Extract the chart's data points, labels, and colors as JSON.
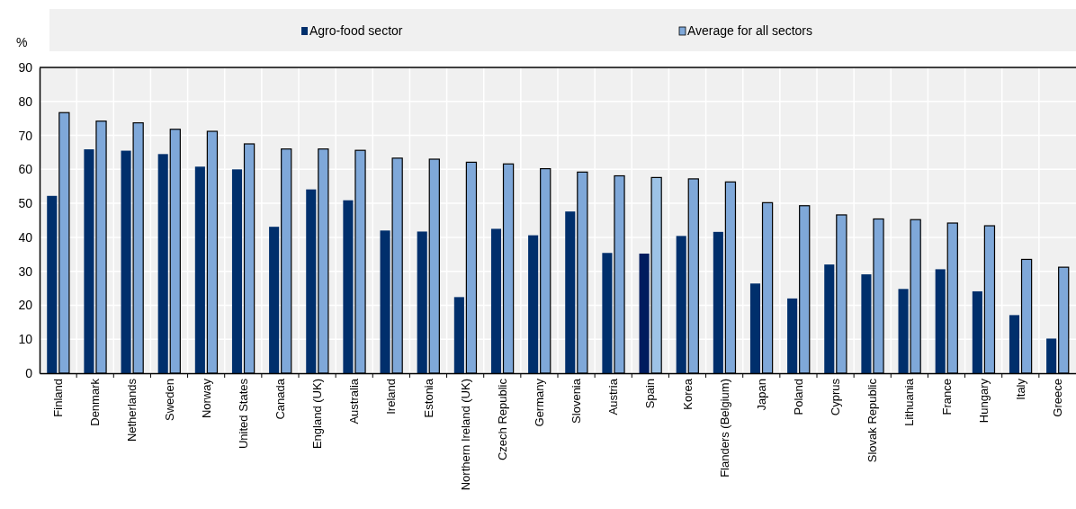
{
  "chart_data": {
    "type": "bar",
    "ylabel": "%",
    "categories": [
      "Finland",
      "Denmark",
      "Netherlands",
      "Sweden",
      "Norway",
      "United States",
      "Canada",
      "England (UK)",
      "Australia",
      "Ireland",
      "Estonia",
      "Northern Ireland (UK)",
      "Czech Republic",
      "Germany",
      "Slovenia",
      "Austria",
      "Spain",
      "Korea",
      "Flanders (Belgium)",
      "Japan",
      "Poland",
      "Cyprus",
      "Slovak Republic",
      "Lithuania",
      "France",
      "Hungary",
      "Italy",
      "Greece"
    ],
    "series": [
      {
        "name": "Agro-food sector",
        "color": "#002f6c",
        "colors": [
          "#002f6c",
          "#002f6c",
          "#002f6c",
          "#002f6c",
          "#002f6c",
          "#002f6c",
          "#002f6c",
          "#002f6c",
          "#002f6c",
          "#002f6c",
          "#002f6c",
          "#002f6c",
          "#002f6c",
          "#002f6c",
          "#002f6c",
          "#002f6c",
          "#001b5e",
          "#002f6c",
          "#002f6c",
          "#002f6c",
          "#002f6c",
          "#002f6c",
          "#002f6c",
          "#002f6c",
          "#002f6c",
          "#002f6c",
          "#002f6c",
          "#002f6c"
        ],
        "values": [
          52.2,
          65.9,
          65.5,
          64.5,
          60.8,
          60.0,
          43.1,
          54.1,
          50.9,
          42.0,
          41.7,
          22.4,
          42.5,
          40.6,
          47.6,
          35.4,
          35.2,
          40.4,
          41.6,
          26.4,
          22.0,
          32.0,
          29.1,
          24.8,
          30.6,
          24.1,
          17.1,
          10.2
        ]
      },
      {
        "name": "Average for all sectors",
        "color": "#7fa8d9",
        "colors": [
          "#7fa8d9",
          "#7fa8d9",
          "#7fa8d9",
          "#7fa8d9",
          "#7fa8d9",
          "#7fa8d9",
          "#7fa8d9",
          "#7fa8d9",
          "#7fa8d9",
          "#7fa8d9",
          "#7fa8d9",
          "#7fa8d9",
          "#7fa8d9",
          "#7fa8d9",
          "#7fa8d9",
          "#7fa8d9",
          "#9dc3e6",
          "#7fa8d9",
          "#7fa8d9",
          "#7fa8d9",
          "#7fa8d9",
          "#7fa8d9",
          "#7fa8d9",
          "#7fa8d9",
          "#7fa8d9",
          "#7fa8d9",
          "#7fa8d9",
          "#7fa8d9"
        ],
        "values": [
          76.7,
          74.2,
          73.7,
          71.8,
          71.2,
          67.5,
          66.0,
          66.0,
          65.6,
          63.3,
          63.0,
          62.1,
          61.6,
          60.2,
          59.2,
          58.1,
          57.6,
          57.2,
          56.3,
          50.2,
          49.3,
          46.6,
          45.4,
          45.2,
          44.2,
          43.4,
          33.5,
          31.2
        ]
      }
    ],
    "ylim": [
      0,
      90
    ],
    "yticks": [
      0,
      10,
      20,
      30,
      40,
      50,
      60,
      70,
      80,
      90
    ],
    "grid": true,
    "legend": "top"
  }
}
